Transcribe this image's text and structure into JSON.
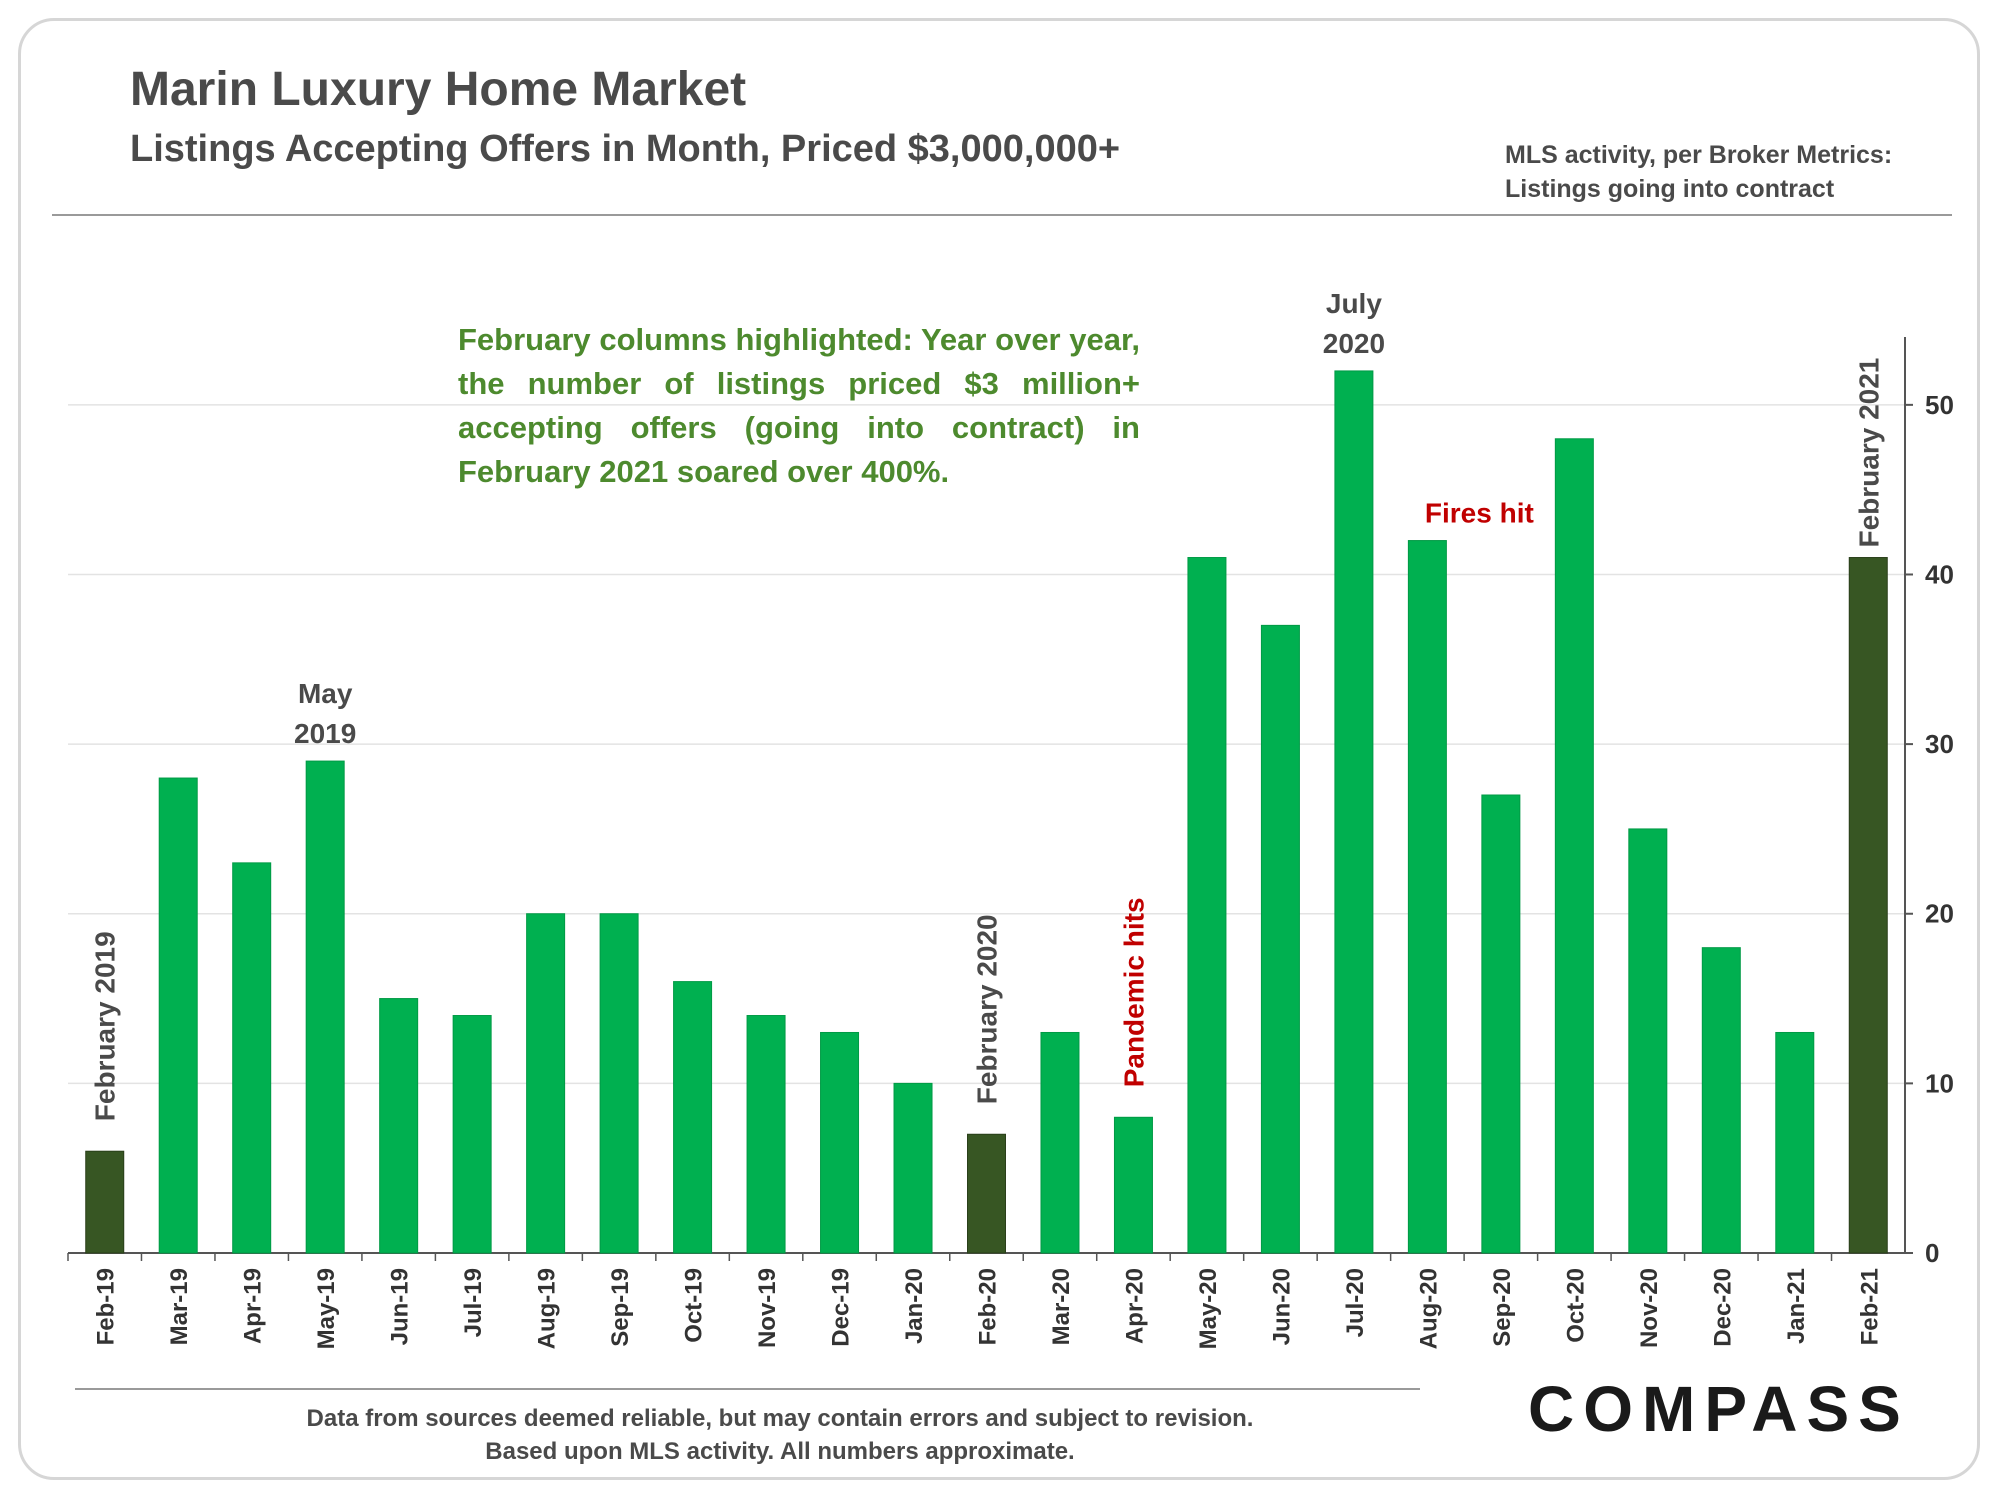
{
  "header": {
    "title": "Marin Luxury Home Market",
    "subtitle": "Listings Accepting Offers in Month, Priced $3,000,000+",
    "note_line1": "MLS activity, per Broker Metrics:",
    "note_line2": "Listings going into contract"
  },
  "annotation": "February columns highlighted: Year over year, the number of listings priced $3 million+ accepting offers (going into contract) in February 2021 soared over 400%.",
  "footer": {
    "line1": "Data from sources deemed reliable, but may contain errors and subject to revision.",
    "line2": "Based upon MLS activity. All numbers approximate."
  },
  "logo": "COMPASS",
  "colors": {
    "bar": "#00b050",
    "highlight_bar": "#375623",
    "annotation_green": "#4d8a2e",
    "annotation_red": "#c00000",
    "label_gray": "#4a4a4a"
  },
  "chart_data": {
    "type": "bar",
    "categories": [
      "Feb-19",
      "Mar-19",
      "Apr-19",
      "May-19",
      "Jun-19",
      "Jul-19",
      "Aug-19",
      "Sep-19",
      "Oct-19",
      "Nov-19",
      "Dec-19",
      "Jan-20",
      "Feb-20",
      "Mar-20",
      "Apr-20",
      "May-20",
      "Jun-20",
      "Jul-20",
      "Aug-20",
      "Sep-20",
      "Oct-20",
      "Nov-20",
      "Dec-20",
      "Jan-21",
      "Feb-21"
    ],
    "values": [
      6,
      28,
      23,
      29,
      15,
      14,
      20,
      20,
      16,
      14,
      13,
      10,
      7,
      13,
      8,
      41,
      37,
      52,
      42,
      27,
      48,
      25,
      18,
      13,
      41
    ],
    "highlighted": [
      "Feb-19",
      "Feb-20",
      "Feb-21"
    ],
    "ylim": [
      0,
      54
    ],
    "yticks": [
      0,
      10,
      20,
      30,
      40,
      50
    ],
    "y_axis_side": "right",
    "grid": true,
    "annotations": [
      {
        "category": "Feb-19",
        "text": "February 2019",
        "color": "label_gray",
        "rotated": true
      },
      {
        "category": "May-19",
        "text": "May 2019",
        "lines": [
          "May",
          "2019"
        ],
        "color": "label_gray",
        "rotated": false
      },
      {
        "category": "Feb-20",
        "text": "February 2020",
        "color": "label_gray",
        "rotated": true
      },
      {
        "category": "Apr-20",
        "text": "Pandemic hits",
        "color": "annotation_red",
        "rotated": true
      },
      {
        "category": "Jul-20",
        "text": "July 2020",
        "lines": [
          "July",
          "2020"
        ],
        "color": "label_gray",
        "rotated": false
      },
      {
        "category": "Aug-20",
        "text": "Fires hit",
        "lines": [
          "Fires hit"
        ],
        "color": "annotation_red",
        "rotated": false
      },
      {
        "category": "Feb-21",
        "text": "February 2021",
        "color": "label_gray",
        "rotated": true
      }
    ]
  }
}
